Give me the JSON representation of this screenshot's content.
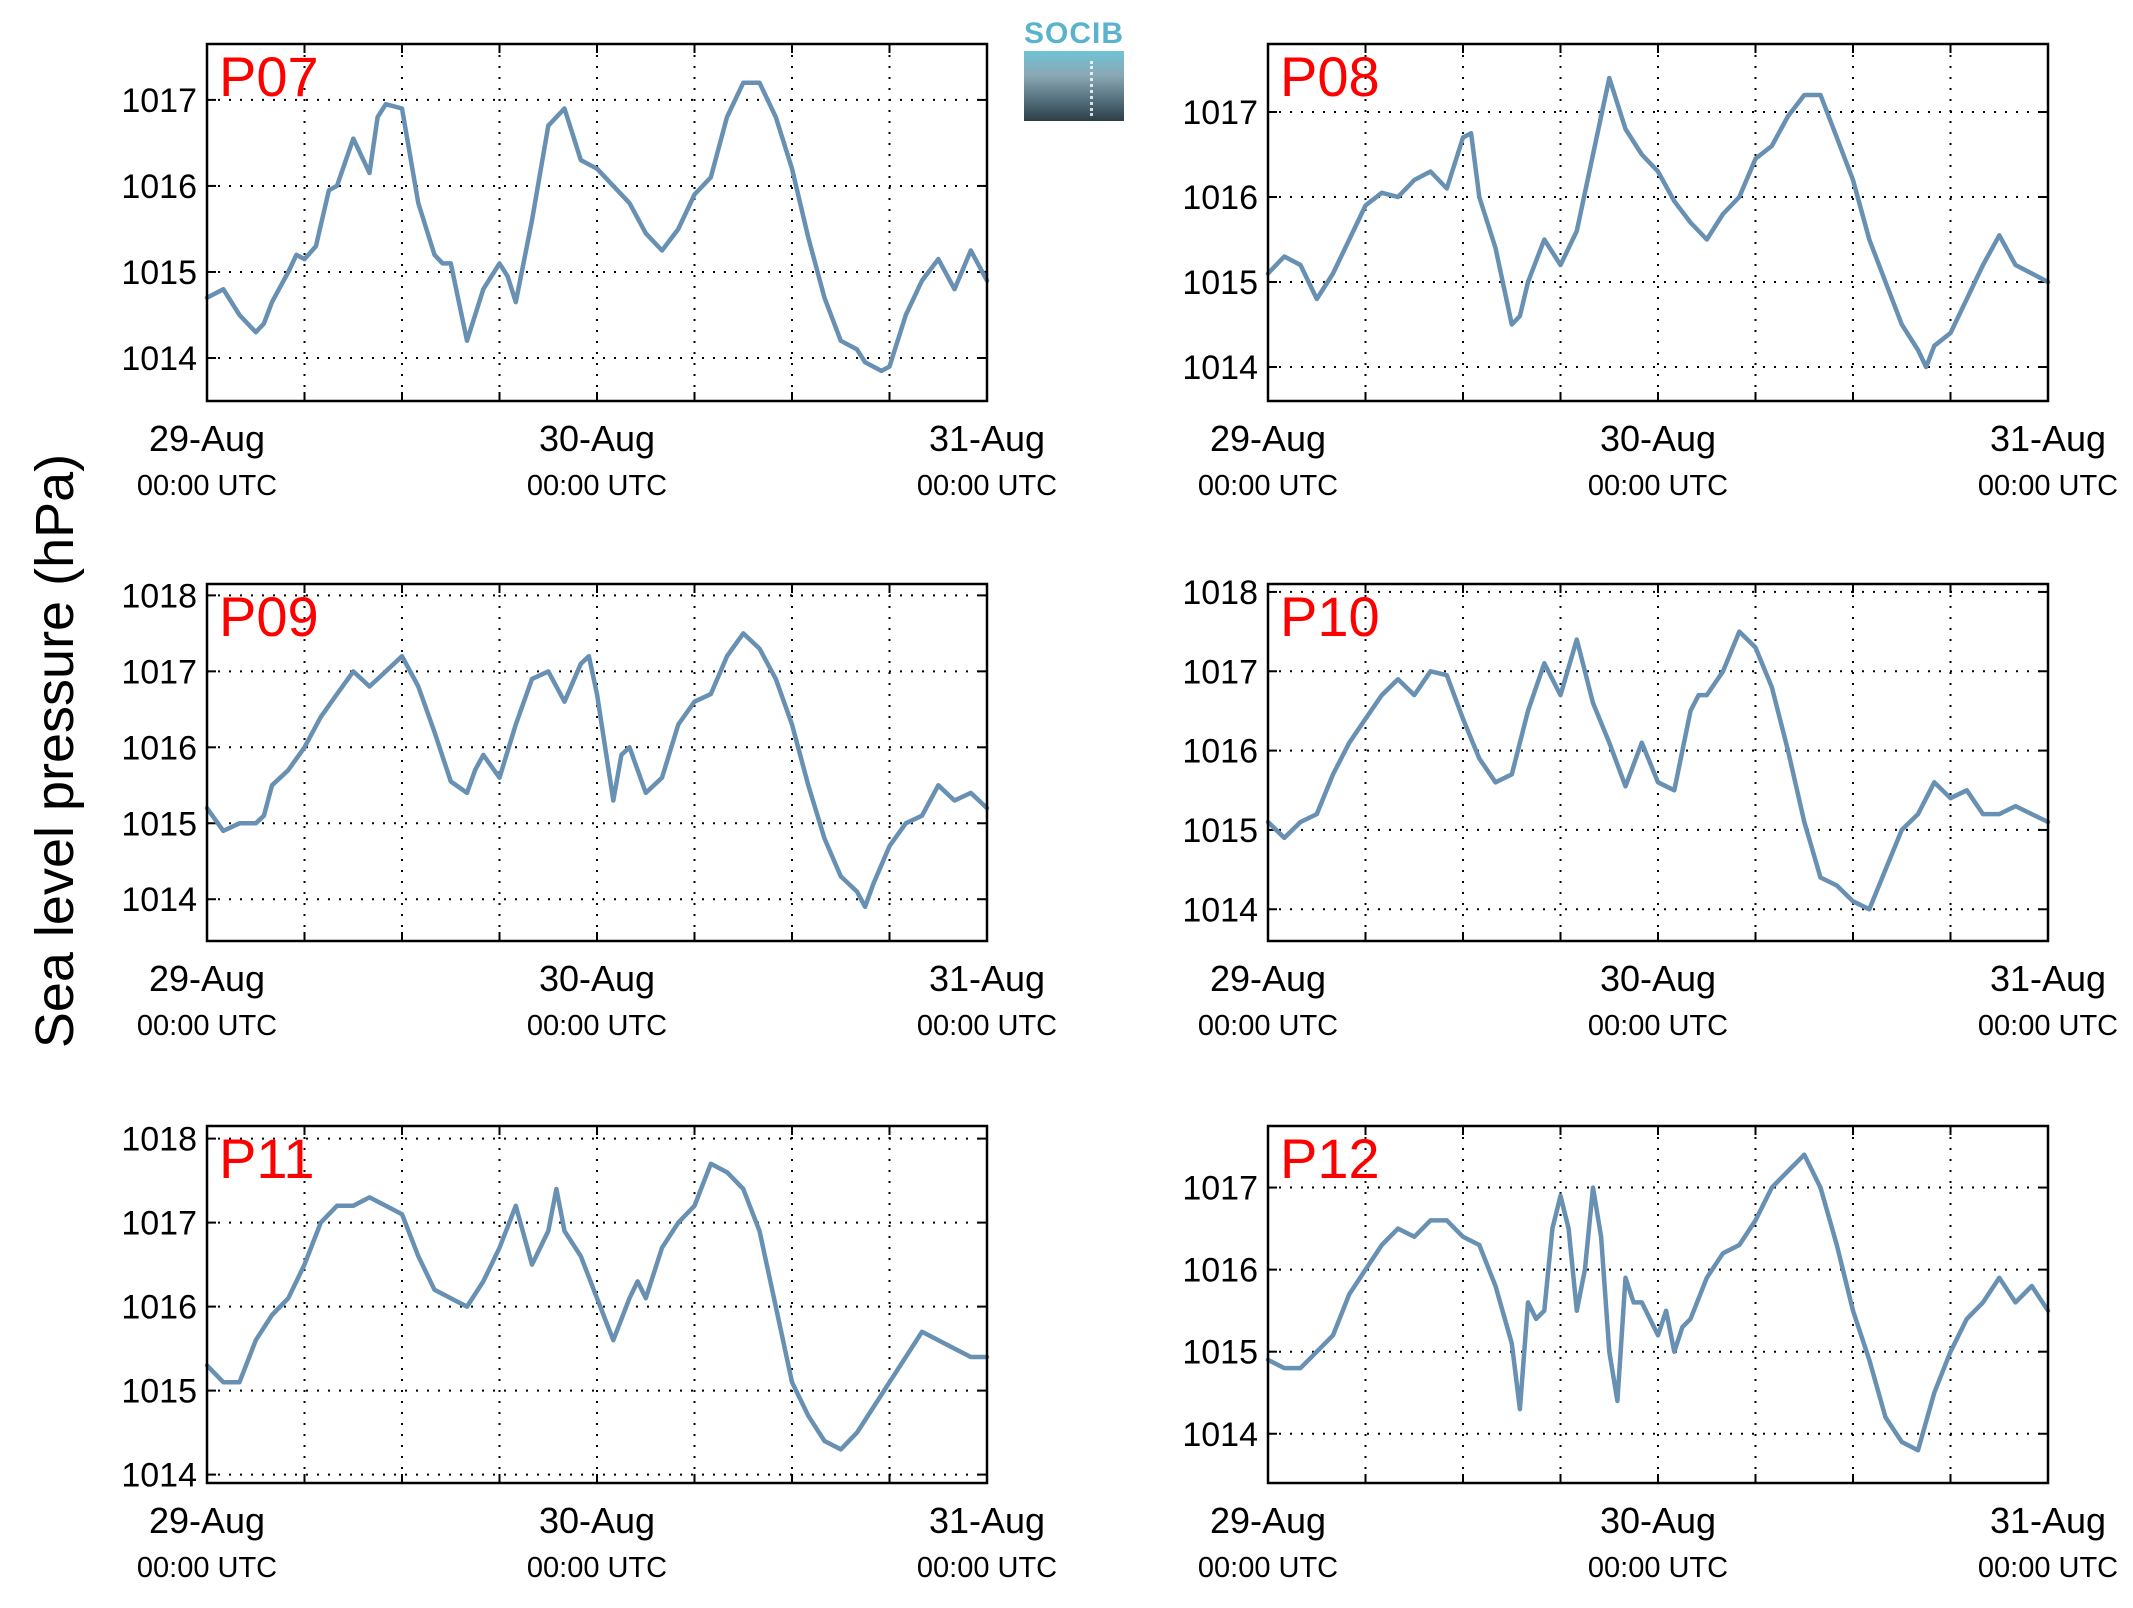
{
  "figure": {
    "ylabel": "Sea level pressure (hPa)",
    "logo_text": "SOCIB",
    "line_color": "#6890b3",
    "panel_label_color": "#ff0000"
  },
  "chart_data": [
    {
      "type": "line",
      "panel": "P07",
      "title": "",
      "xlim": [
        0,
        48
      ],
      "ylim": [
        1013.5,
        1017.65
      ],
      "yticks": [
        1014,
        1015,
        1016,
        1017
      ],
      "xticks": [
        0,
        24,
        48
      ],
      "xticklabels": [
        "29-Aug",
        "30-Aug",
        "31-Aug"
      ],
      "xticksub": "00:00 UTC",
      "grid": true,
      "series": [
        {
          "x": [
            0,
            1,
            2,
            3,
            3.5,
            4,
            5,
            5.5,
            6,
            6.7,
            7.5,
            8,
            9,
            10,
            10.5,
            11,
            12,
            13,
            13.5,
            14,
            14.5,
            15,
            16,
            17,
            18,
            18.5,
            19,
            20,
            21,
            22,
            23,
            24,
            25,
            26,
            27,
            28,
            29,
            30,
            31,
            32,
            33,
            34,
            35,
            36,
            37,
            38,
            39,
            40,
            40.5,
            41,
            41.5,
            42,
            43,
            44,
            45,
            46,
            47,
            48
          ],
          "y": [
            1014.7,
            1014.8,
            1014.5,
            1014.3,
            1014.4,
            1014.65,
            1015.0,
            1015.2,
            1015.15,
            1015.3,
            1015.95,
            1016.0,
            1016.55,
            1016.15,
            1016.8,
            1016.95,
            1016.9,
            1015.8,
            1015.5,
            1015.2,
            1015.1,
            1015.1,
            1014.2,
            1014.8,
            1015.1,
            1014.95,
            1014.65,
            1015.6,
            1016.7,
            1016.9,
            1016.3,
            1016.2,
            1016.0,
            1015.8,
            1015.45,
            1015.25,
            1015.5,
            1015.9,
            1016.1,
            1016.8,
            1017.2,
            1017.2,
            1016.8,
            1016.2,
            1015.4,
            1014.7,
            1014.2,
            1014.1,
            1013.95,
            1013.9,
            1013.85,
            1013.9,
            1014.5,
            1014.9,
            1015.15,
            1014.8,
            1015.25,
            1014.9
          ]
        }
      ]
    },
    {
      "type": "line",
      "panel": "P08",
      "title": "",
      "xlim": [
        0,
        48
      ],
      "ylim": [
        1013.6,
        1017.8
      ],
      "yticks": [
        1014,
        1015,
        1016,
        1017
      ],
      "xticks": [
        0,
        24,
        48
      ],
      "xticklabels": [
        "29-Aug",
        "30-Aug",
        "31-Aug"
      ],
      "xticksub": "00:00 UTC",
      "grid": true,
      "series": [
        {
          "x": [
            0,
            1,
            2,
            3,
            4,
            5,
            6,
            7,
            8,
            9,
            10,
            11,
            12,
            12.5,
            13,
            14,
            15,
            15.5,
            16,
            17,
            18,
            19,
            20,
            21,
            22,
            23,
            24,
            25,
            26,
            27,
            28,
            29,
            30,
            31,
            32,
            33,
            34,
            35,
            36,
            37,
            38,
            39,
            40,
            40.5,
            41,
            42,
            43,
            44,
            45,
            46,
            47,
            48
          ],
          "y": [
            1015.1,
            1015.3,
            1015.2,
            1014.8,
            1015.1,
            1015.5,
            1015.9,
            1016.05,
            1016.0,
            1016.2,
            1016.3,
            1016.1,
            1016.7,
            1016.75,
            1016.0,
            1015.4,
            1014.5,
            1014.6,
            1015.0,
            1015.5,
            1015.2,
            1015.6,
            1016.5,
            1017.4,
            1016.8,
            1016.5,
            1016.3,
            1015.95,
            1015.7,
            1015.5,
            1015.8,
            1016.0,
            1016.45,
            1016.6,
            1016.95,
            1017.2,
            1017.2,
            1016.7,
            1016.2,
            1015.5,
            1015.0,
            1014.5,
            1014.2,
            1014.0,
            1014.25,
            1014.4,
            1014.8,
            1015.2,
            1015.55,
            1015.2,
            1015.1,
            1015.0
          ]
        }
      ]
    },
    {
      "type": "line",
      "panel": "P09",
      "title": "",
      "xlim": [
        0,
        48
      ],
      "ylim": [
        1013.45,
        1018.15
      ],
      "yticks": [
        1014,
        1015,
        1016,
        1017,
        1018
      ],
      "xticks": [
        0,
        24,
        48
      ],
      "xticklabels": [
        "29-Aug",
        "30-Aug",
        "31-Aug"
      ],
      "xticksub": "00:00 UTC",
      "grid": true,
      "series": [
        {
          "x": [
            0,
            1,
            2,
            3,
            3.5,
            4,
            5,
            6,
            7,
            8,
            9,
            10,
            11,
            12,
            13,
            14,
            15,
            16,
            16.5,
            17,
            18,
            19,
            20,
            21,
            22,
            23,
            23.5,
            24,
            25,
            25.5,
            26,
            27,
            28,
            29,
            30,
            31,
            32,
            33,
            34,
            35,
            36,
            37,
            38,
            39,
            40,
            40.5,
            41,
            42,
            43,
            44,
            45,
            46,
            47,
            48
          ],
          "y": [
            1015.2,
            1014.9,
            1015.0,
            1015.0,
            1015.1,
            1015.5,
            1015.7,
            1016.0,
            1016.4,
            1016.7,
            1017.0,
            1016.8,
            1017.0,
            1017.2,
            1016.8,
            1016.2,
            1015.55,
            1015.4,
            1015.7,
            1015.9,
            1015.6,
            1016.3,
            1016.9,
            1017.0,
            1016.6,
            1017.1,
            1017.2,
            1016.7,
            1015.3,
            1015.9,
            1016.0,
            1015.4,
            1015.6,
            1016.3,
            1016.6,
            1016.7,
            1017.2,
            1017.5,
            1017.3,
            1016.9,
            1016.3,
            1015.5,
            1014.8,
            1014.3,
            1014.1,
            1013.9,
            1014.2,
            1014.7,
            1015.0,
            1015.1,
            1015.5,
            1015.3,
            1015.4,
            1015.2
          ]
        }
      ]
    },
    {
      "type": "line",
      "panel": "P10",
      "title": "",
      "xlim": [
        0,
        48
      ],
      "ylim": [
        1013.6,
        1018.1
      ],
      "yticks": [
        1014,
        1015,
        1016,
        1017,
        1018
      ],
      "xticks": [
        0,
        24,
        48
      ],
      "xticklabels": [
        "29-Aug",
        "30-Aug",
        "31-Aug"
      ],
      "xticksub": "00:00 UTC",
      "grid": true,
      "series": [
        {
          "x": [
            0,
            1,
            2,
            3,
            4,
            5,
            6,
            7,
            8,
            9,
            10,
            11,
            12,
            13,
            14,
            15,
            16,
            17,
            18,
            19,
            20,
            21,
            22,
            23,
            24,
            25,
            25.5,
            26,
            26.5,
            27,
            28,
            29,
            30,
            31,
            32,
            33,
            34,
            35,
            36,
            37,
            38,
            39,
            40,
            41,
            42,
            43,
            44,
            45,
            46,
            47,
            48
          ],
          "y": [
            1015.1,
            1014.9,
            1015.1,
            1015.2,
            1015.7,
            1016.1,
            1016.4,
            1016.7,
            1016.9,
            1016.7,
            1017.0,
            1016.95,
            1016.4,
            1015.9,
            1015.6,
            1015.7,
            1016.5,
            1017.1,
            1016.7,
            1017.4,
            1016.6,
            1016.1,
            1015.55,
            1016.1,
            1015.6,
            1015.5,
            1016.0,
            1016.5,
            1016.7,
            1016.7,
            1017.0,
            1017.5,
            1017.3,
            1016.8,
            1016.0,
            1015.1,
            1014.4,
            1014.3,
            1014.1,
            1014.0,
            1014.5,
            1015.0,
            1015.2,
            1015.6,
            1015.4,
            1015.5,
            1015.2,
            1015.2,
            1015.3,
            1015.2,
            1015.1
          ]
        }
      ]
    },
    {
      "type": "line",
      "panel": "P11",
      "title": "",
      "xlim": [
        0,
        48
      ],
      "ylim": [
        1013.9,
        1018.15
      ],
      "yticks": [
        1014,
        1015,
        1016,
        1017,
        1018
      ],
      "xticks": [
        0,
        24,
        48
      ],
      "xticklabels": [
        "29-Aug",
        "30-Aug",
        "31-Aug"
      ],
      "xticksub": "00:00 UTC",
      "grid": true,
      "series": [
        {
          "x": [
            0,
            1,
            2,
            3,
            4,
            5,
            6,
            7,
            8,
            9,
            10,
            11,
            12,
            13,
            14,
            15,
            16,
            17,
            18,
            19,
            20,
            21,
            21.5,
            22,
            23,
            24,
            25,
            26,
            26.5,
            27,
            28,
            29,
            30,
            31,
            32,
            33,
            34,
            35,
            36,
            37,
            38,
            39,
            40,
            41,
            42,
            43,
            44,
            45,
            46,
            47,
            48
          ],
          "y": [
            1015.3,
            1015.1,
            1015.1,
            1015.6,
            1015.9,
            1016.1,
            1016.5,
            1017.0,
            1017.2,
            1017.2,
            1017.3,
            1017.2,
            1017.1,
            1016.6,
            1016.2,
            1016.1,
            1016.0,
            1016.3,
            1016.7,
            1017.2,
            1016.5,
            1016.9,
            1017.4,
            1016.9,
            1016.6,
            1016.1,
            1015.6,
            1016.1,
            1016.3,
            1016.1,
            1016.7,
            1017.0,
            1017.2,
            1017.7,
            1017.6,
            1017.4,
            1016.9,
            1016.0,
            1015.1,
            1014.7,
            1014.4,
            1014.3,
            1014.5,
            1014.8,
            1015.1,
            1015.4,
            1015.7,
            1015.6,
            1015.5,
            1015.4,
            1015.4
          ]
        }
      ]
    },
    {
      "type": "line",
      "panel": "P12",
      "title": "",
      "xlim": [
        0,
        48
      ],
      "ylim": [
        1013.4,
        1017.75
      ],
      "yticks": [
        1014,
        1015,
        1016,
        1017
      ],
      "xticks": [
        0,
        24,
        48
      ],
      "xticklabels": [
        "29-Aug",
        "30-Aug",
        "31-Aug"
      ],
      "xticksub": "00:00 UTC",
      "grid": true,
      "series": [
        {
          "x": [
            0,
            1,
            2,
            3,
            4,
            5,
            6,
            7,
            8,
            9,
            10,
            11,
            12,
            13,
            14,
            15,
            15.5,
            16,
            16.5,
            17,
            17.5,
            18,
            18.5,
            19,
            19.5,
            20,
            20.5,
            21,
            21.5,
            22,
            22.5,
            23,
            24,
            24.5,
            25,
            25.5,
            26,
            27,
            28,
            29,
            30,
            31,
            32,
            33,
            34,
            35,
            36,
            37,
            38,
            39,
            40,
            41,
            42,
            43,
            44,
            45,
            46,
            47,
            48
          ],
          "y": [
            1014.9,
            1014.8,
            1014.8,
            1015.0,
            1015.2,
            1015.7,
            1016.0,
            1016.3,
            1016.5,
            1016.4,
            1016.6,
            1016.6,
            1016.4,
            1016.3,
            1015.8,
            1015.1,
            1014.3,
            1015.6,
            1015.4,
            1015.5,
            1016.5,
            1016.9,
            1016.5,
            1015.5,
            1016.0,
            1017.0,
            1016.4,
            1015.0,
            1014.4,
            1015.9,
            1015.6,
            1015.6,
            1015.2,
            1015.5,
            1015.0,
            1015.3,
            1015.4,
            1015.9,
            1016.2,
            1016.3,
            1016.6,
            1017.0,
            1017.2,
            1017.4,
            1017.0,
            1016.3,
            1015.5,
            1014.9,
            1014.2,
            1013.9,
            1013.8,
            1014.5,
            1015.0,
            1015.4,
            1015.6,
            1015.9,
            1015.6,
            1015.8,
            1015.5
          ]
        }
      ]
    }
  ]
}
